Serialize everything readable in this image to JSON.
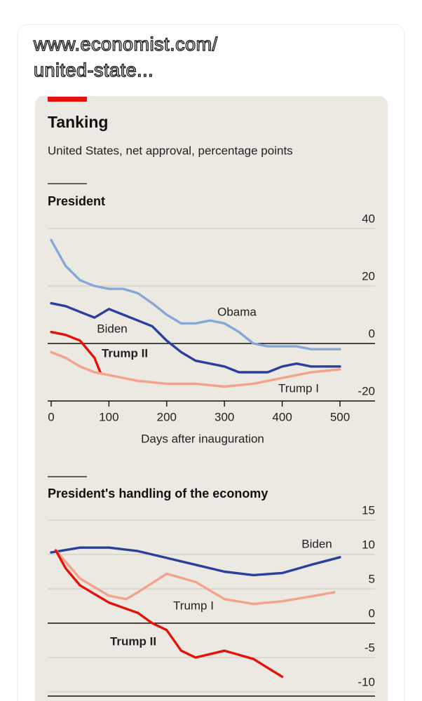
{
  "header": {
    "url": [
      "www.economist.com/",
      "united-state..."
    ]
  },
  "card": {
    "title": "Tanking",
    "subtitle": "United States, net approval, percentage points"
  },
  "chart_data": [
    {
      "type": "line",
      "title": "President",
      "x_label": "Days after inauguration",
      "xlim": [
        0,
        500
      ],
      "xticks": [
        0,
        100,
        200,
        300,
        400,
        500
      ],
      "ylim": [
        -20,
        40
      ],
      "yticks": [
        40,
        20,
        0,
        -20
      ],
      "grid": true,
      "series": [
        {
          "name": "Obama",
          "color": "#86a8d6",
          "x": [
            0,
            25,
            50,
            75,
            100,
            125,
            150,
            175,
            200,
            225,
            250,
            275,
            300,
            325,
            350,
            375,
            400,
            425,
            450,
            475,
            500
          ],
          "values": [
            36,
            27,
            22,
            20,
            19,
            19,
            17.5,
            14,
            10,
            7,
            7,
            8,
            7,
            4,
            0,
            -1,
            -1,
            -1,
            -2,
            -2,
            -2
          ]
        },
        {
          "name": "Biden",
          "color": "#2b3f9c",
          "x": [
            0,
            25,
            50,
            75,
            100,
            125,
            150,
            175,
            200,
            225,
            250,
            275,
            300,
            325,
            350,
            375,
            400,
            425,
            450,
            475,
            500
          ],
          "values": [
            14,
            13,
            11,
            9,
            12,
            10,
            8,
            6,
            1,
            -3,
            -6,
            -7,
            -8,
            -10,
            -10,
            -10,
            -8,
            -7,
            -8,
            -8,
            -8
          ]
        },
        {
          "name": "Trump II",
          "color": "#e3120b",
          "x": [
            0,
            25,
            50,
            75,
            85
          ],
          "values": [
            4,
            3,
            1,
            -5,
            -10
          ]
        },
        {
          "name": "Trump I",
          "color": "#f4a38b",
          "x": [
            0,
            25,
            50,
            75,
            100,
            150,
            200,
            250,
            300,
            350,
            400,
            450,
            500
          ],
          "values": [
            -3,
            -5,
            -8,
            -10,
            -11,
            -13,
            -14,
            -14,
            -15,
            -14,
            -12,
            -10,
            -9
          ]
        }
      ]
    },
    {
      "type": "line",
      "title": "President's handling of the economy",
      "xlim": [
        0,
        500
      ],
      "ylim": [
        -10,
        15
      ],
      "yticks": [
        15,
        10,
        5,
        0,
        -5,
        -10
      ],
      "grid": true,
      "series": [
        {
          "name": "Biden",
          "color": "#2b3f9c",
          "x": [
            0,
            50,
            100,
            150,
            200,
            250,
            300,
            350,
            400,
            450,
            500
          ],
          "values": [
            10.3,
            11,
            11,
            10.5,
            9.5,
            8.5,
            7.5,
            7,
            7.3,
            8.5,
            9.6
          ]
        },
        {
          "name": "Trump I",
          "color": "#f4a38b",
          "x": [
            8,
            50,
            100,
            130,
            150,
            200,
            250,
            300,
            350,
            400,
            450,
            490
          ],
          "values": [
            10.6,
            6.5,
            4,
            3.5,
            4.5,
            7.2,
            6,
            3.5,
            2.8,
            3.2,
            3.9,
            4.5
          ]
        },
        {
          "name": "Trump II",
          "color": "#e3120b",
          "x": [
            8,
            25,
            50,
            100,
            150,
            175,
            200,
            225,
            250,
            300,
            350,
            400
          ],
          "values": [
            10.6,
            8,
            5.5,
            3,
            1.5,
            0,
            -1,
            -4,
            -5,
            -4,
            -5.2,
            -7.8
          ]
        }
      ]
    }
  ]
}
